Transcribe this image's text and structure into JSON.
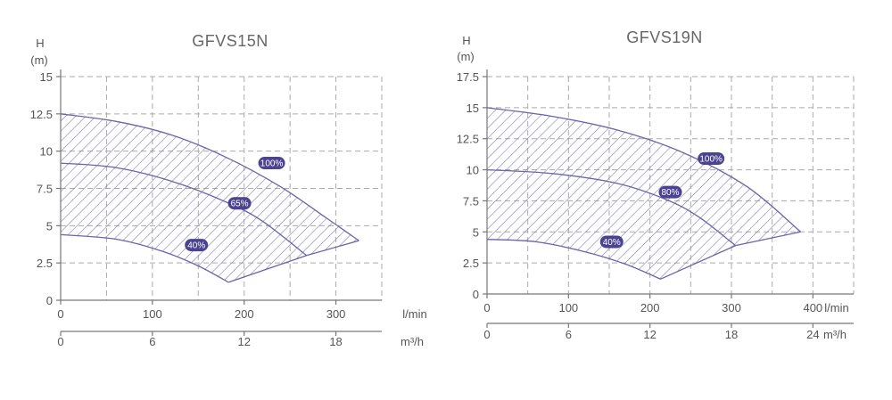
{
  "chart_data": [
    {
      "type": "area",
      "title": "GFVS15N",
      "ylabel": "H",
      "yunit": "(m)",
      "xlabel": "l/min",
      "x2label": "m³/h",
      "ylim": [
        0,
        15
      ],
      "yticks": [
        "0",
        "2.5",
        "5",
        "7.5",
        "10",
        "12.5",
        "15"
      ],
      "xlim": [
        0,
        350
      ],
      "xticks": [
        0,
        100,
        200,
        300
      ],
      "xticklabels": [
        "0",
        "100",
        "200",
        "300"
      ],
      "x2ticks": [
        0,
        100,
        200,
        300
      ],
      "x2ticklabels": [
        "0",
        "6",
        "12",
        "18"
      ],
      "grid": true,
      "series": [
        {
          "name": "100%",
          "x": [
            0,
            60,
            120,
            180,
            240,
            290,
            325
          ],
          "y": [
            12.5,
            12.0,
            11.1,
            9.6,
            7.6,
            5.5,
            4.0
          ],
          "label_at": [
            230,
            9.2
          ]
        },
        {
          "name": "65%",
          "x": [
            0,
            60,
            120,
            180,
            220,
            268
          ],
          "y": [
            9.2,
            8.9,
            8.0,
            6.6,
            5.3,
            3.0
          ],
          "label_at": [
            195,
            6.5
          ]
        },
        {
          "name": "40%",
          "x": [
            0,
            60,
            110,
            150,
            183
          ],
          "y": [
            4.4,
            4.1,
            3.3,
            2.3,
            1.2
          ],
          "label_at": [
            148,
            3.7
          ]
        }
      ],
      "lower_bound": {
        "x": [
          183,
          268,
          325
        ],
        "y": [
          1.2,
          3.0,
          4.0
        ]
      }
    },
    {
      "type": "area",
      "title": "GFVS19N",
      "ylabel": "H",
      "yunit": "(m)",
      "xlabel": "l/min",
      "x2label": "m³/h",
      "ylim": [
        0,
        17.5
      ],
      "yticks": [
        "0",
        "2.5",
        "5",
        "7.5",
        "10",
        "12.5",
        "15",
        "17.5"
      ],
      "xlim": [
        0,
        450
      ],
      "xticks": [
        0,
        100,
        200,
        300,
        400
      ],
      "xticklabels": [
        "0",
        "100",
        "200",
        "300",
        "400"
      ],
      "x2ticks": [
        0,
        100,
        200,
        300,
        400
      ],
      "x2ticklabels": [
        "0",
        "6",
        "12",
        "18",
        "24"
      ],
      "grid": true,
      "series": [
        {
          "name": "100%",
          "x": [
            0,
            80,
            160,
            240,
            320,
            385
          ],
          "y": [
            15.0,
            14.3,
            13.2,
            11.4,
            8.6,
            5.0
          ],
          "label_at": [
            275,
            10.9
          ]
        },
        {
          "name": "80%",
          "x": [
            0,
            80,
            160,
            220,
            260,
            305
          ],
          "y": [
            10.0,
            9.7,
            8.9,
            7.6,
            6.2,
            3.9
          ],
          "label_at": [
            225,
            8.2
          ]
        },
        {
          "name": "40%",
          "x": [
            0,
            60,
            120,
            170,
            213
          ],
          "y": [
            4.4,
            4.2,
            3.4,
            2.4,
            1.2
          ],
          "label_at": [
            153,
            4.2
          ]
        }
      ],
      "lower_bound": {
        "x": [
          213,
          305,
          385
        ],
        "y": [
          1.2,
          3.9,
          5.0
        ]
      }
    }
  ]
}
